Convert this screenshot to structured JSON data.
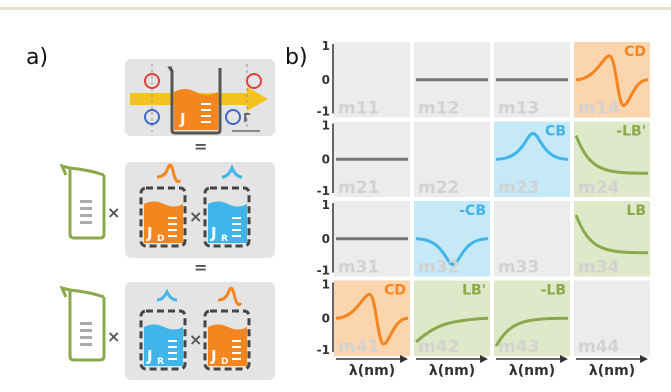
{
  "figure": {
    "panel_a": "a)",
    "panel_b": "b)",
    "j_label": "J",
    "op_equals": "=",
    "op_times": "×",
    "jd_main": "J",
    "jd_sub": "D",
    "jr_main": "J",
    "jr_sub": "R",
    "gamma_label": "Γ"
  },
  "colors": {
    "orange": "#f5851f",
    "blue": "#3fb5ea",
    "green": "#8aa94a",
    "gray_line": "#777777",
    "cell_bg": "#ececec",
    "orange_bg": "#fbd5ad",
    "blue_bg": "#c6e9f8",
    "green_bg": "#dfe8c8",
    "red_arrow": "#e0403e",
    "yellow_arrow": "#f3c21f"
  },
  "matrix": {
    "y_ticks": [
      "1",
      "0",
      "-1"
    ],
    "x_label": "λ(nm)",
    "cells": [
      {
        "name": "m11",
        "tag": "",
        "curve": "none",
        "bg": "gray"
      },
      {
        "name": "m12",
        "tag": "",
        "curve": "flat",
        "bg": "gray"
      },
      {
        "name": "m13",
        "tag": "",
        "curve": "flat",
        "bg": "gray"
      },
      {
        "name": "m14",
        "tag": "CD",
        "curve": "cd",
        "bg": "orange"
      },
      {
        "name": "m21",
        "tag": "",
        "curve": "flat",
        "bg": "gray"
      },
      {
        "name": "m22",
        "tag": "",
        "curve": "none",
        "bg": "gray"
      },
      {
        "name": "m23",
        "tag": "CB",
        "curve": "peak_up",
        "bg": "blue"
      },
      {
        "name": "m24",
        "tag": "-LB'",
        "curve": "decay",
        "bg": "green"
      },
      {
        "name": "m31",
        "tag": "",
        "curve": "flat",
        "bg": "gray"
      },
      {
        "name": "m32",
        "tag": "-CB",
        "curve": "peak_down",
        "bg": "blue"
      },
      {
        "name": "m33",
        "tag": "",
        "curve": "none",
        "bg": "gray"
      },
      {
        "name": "m34",
        "tag": "LB",
        "curve": "decay",
        "bg": "green"
      },
      {
        "name": "m41",
        "tag": "CD",
        "curve": "cd",
        "bg": "orange"
      },
      {
        "name": "m42",
        "tag": "LB'",
        "curve": "rise",
        "bg": "green"
      },
      {
        "name": "m43",
        "tag": "-LB",
        "curve": "rise_steep",
        "bg": "green"
      },
      {
        "name": "m44",
        "tag": "",
        "curve": "none",
        "bg": "gray"
      }
    ]
  }
}
